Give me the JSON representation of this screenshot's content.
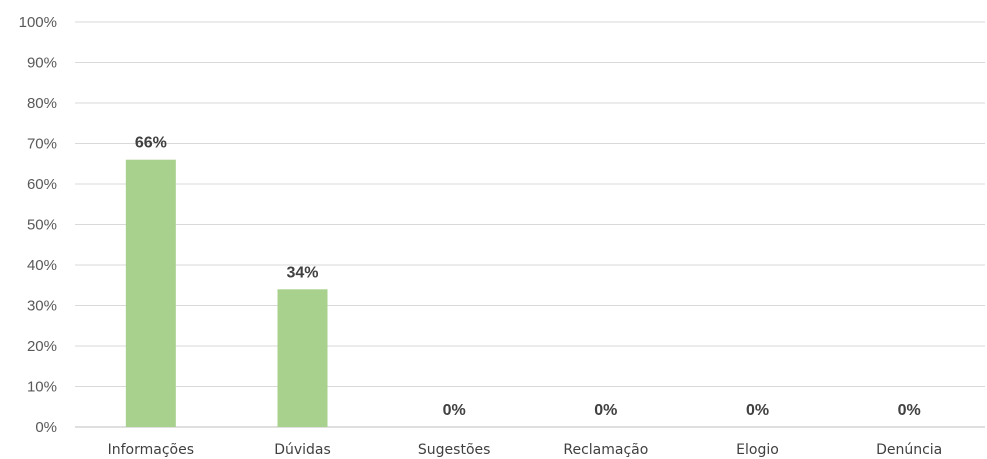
{
  "chart_data": {
    "type": "bar",
    "categories": [
      "Informações",
      "Dúvidas",
      "Sugestões",
      "Reclamação",
      "Elogio",
      "Denúncia"
    ],
    "values": [
      66,
      34,
      0,
      0,
      0,
      0
    ],
    "data_labels": [
      "66%",
      "34%",
      "0%",
      "0%",
      "0%",
      "0%"
    ],
    "ylim": [
      0,
      100
    ],
    "yticks": [
      "0%",
      "10%",
      "20%",
      "30%",
      "40%",
      "50%",
      "60%",
      "70%",
      "80%",
      "90%",
      "100%"
    ],
    "grid": true,
    "legend": "none",
    "title": "",
    "xlabel": "",
    "ylabel": "",
    "colors": {
      "bar": "#a9d18e"
    }
  }
}
